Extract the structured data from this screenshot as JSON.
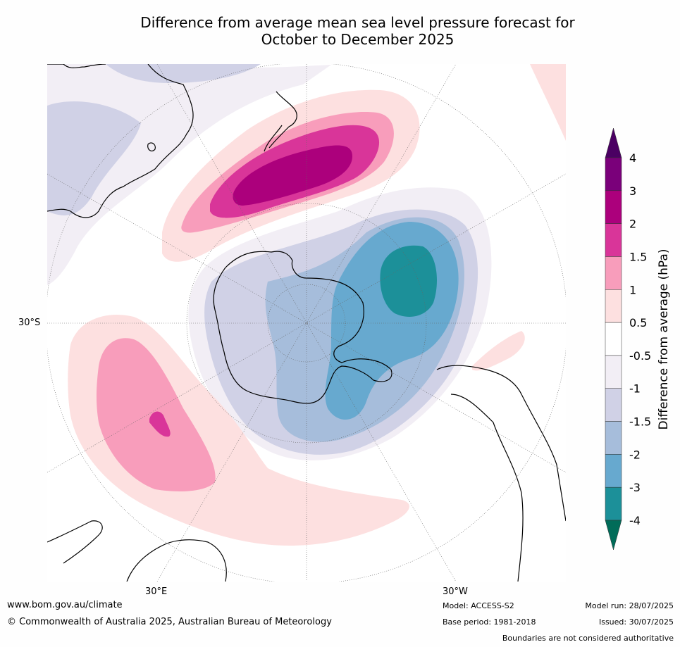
{
  "title_line1": "Difference from average mean sea level pressure forecast for",
  "title_line2": "October to December 2025",
  "map_labels": {
    "lat_30s": "30°S",
    "lon_30e": "30°E",
    "lon_30w": "30°W"
  },
  "legend": {
    "label": "Difference from average (hPa)",
    "ticks": [
      "4",
      "3",
      "2",
      "1.5",
      "1",
      "0.5",
      "-0.5",
      "-1",
      "-1.5",
      "-2",
      "-3",
      "-4"
    ],
    "colors": [
      "#4b0063",
      "#7a007a",
      "#ac007c",
      "#d93599",
      "#f89dbb",
      "#fde0e0",
      "#ffffff",
      "#f2eef5",
      "#d0d1e6",
      "#a6bddb",
      "#67a9cf",
      "#1c9099",
      "#016c59"
    ]
  },
  "footer": {
    "website": "www.bom.gov.au/climate",
    "copyright": "© Commonwealth of Australia 2025, Australian Bureau of Meteorology",
    "model": "Model: ACCESS-S2",
    "base_period": "Base period: 1981-2018",
    "model_run": "Model run: 28/07/2025",
    "issued": "Issued: 30/07/2025",
    "disclaimer": "Boundaries are not considered authoritative"
  }
}
